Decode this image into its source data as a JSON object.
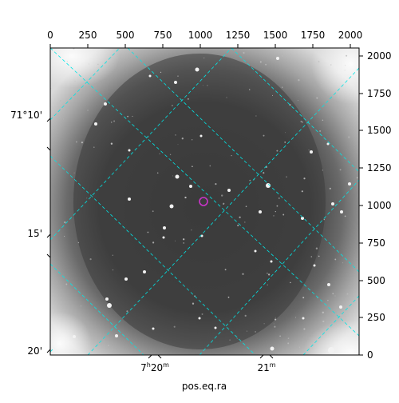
{
  "plot": {
    "xlabel": "pos.eq.ra",
    "top_ticks": [
      "0",
      "250",
      "500",
      "750",
      "1000",
      "1250",
      "1500",
      "1750",
      "2000"
    ],
    "right_ticks": [
      "2000",
      "1750",
      "1500",
      "1250",
      "1000",
      "750",
      "500",
      "250",
      "0"
    ],
    "left_ticks": [
      "71°10'",
      "15'",
      "20'"
    ],
    "bottom_ticks": [
      {
        "h": "7",
        "h_unit": "h",
        "m": "20",
        "m_unit": "m"
      },
      {
        "h": "",
        "h_unit": "",
        "m": "21",
        "m_unit": "m"
      }
    ]
  },
  "image": {
    "target_marker_color": "#cc33cc",
    "grid_color": "#00e5e5"
  }
}
